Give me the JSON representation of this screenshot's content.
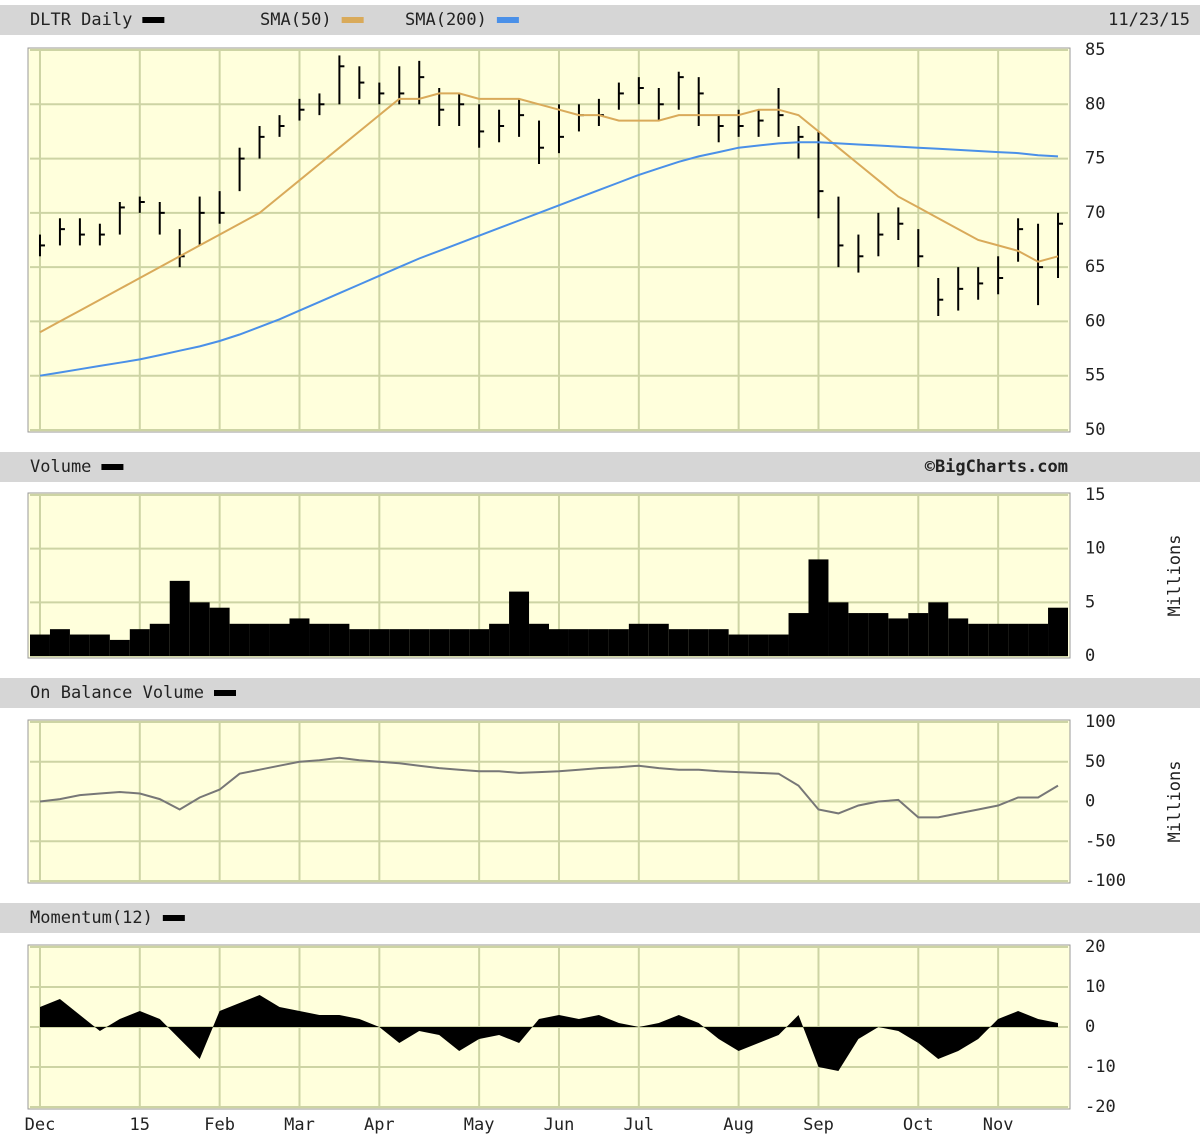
{
  "chart_data": [
    {
      "type": "ohlc",
      "date": "11/23/15",
      "ylim": [
        50,
        85
      ],
      "yticks": [
        50,
        55,
        60,
        65,
        70,
        75,
        80,
        85
      ],
      "grid": true,
      "series": [
        {
          "name": "DLTR Daily",
          "color": "#000000",
          "high": [
            68,
            69.5,
            69.5,
            69,
            71,
            71.5,
            71,
            68.5,
            71.5,
            72,
            76,
            78,
            79,
            80.5,
            81,
            84.5,
            83.5,
            82,
            83.5,
            84,
            81.5,
            81,
            80,
            79.5,
            80.5,
            78.5,
            80,
            80,
            80.5,
            82,
            82.5,
            81.5,
            83,
            82.5,
            79,
            79.5,
            79.5,
            81.5,
            78,
            77.5,
            71.5,
            68,
            70,
            70.5,
            68.5,
            64,
            65,
            65,
            66,
            69.5,
            69,
            70
          ],
          "low": [
            66,
            67,
            67,
            67,
            68,
            70,
            68,
            65,
            67,
            69,
            72,
            75,
            77,
            78.5,
            79,
            80,
            80.5,
            80,
            80,
            80,
            78,
            78,
            76,
            76.5,
            77,
            74.5,
            75.5,
            77.5,
            78,
            79.5,
            80,
            78.5,
            79.5,
            78,
            76.5,
            77,
            77,
            77,
            75,
            69.5,
            65,
            64.5,
            66,
            67.5,
            65,
            60.5,
            61,
            62,
            62.5,
            65.5,
            61.5,
            64
          ],
          "values": [
            67,
            68.5,
            68,
            68,
            70.5,
            71,
            70,
            66,
            70,
            70,
            75,
            77,
            78,
            79.5,
            80,
            83.5,
            82,
            81,
            81,
            82.5,
            79.5,
            80,
            77.5,
            78,
            79,
            76,
            77,
            79,
            79,
            81,
            81.5,
            80,
            82.5,
            81,
            78,
            78,
            78.5,
            79,
            77,
            72,
            67,
            66,
            68,
            69,
            66,
            62,
            63,
            63.5,
            64,
            68.5,
            65,
            69
          ]
        },
        {
          "name": "SMA(50)",
          "color": "#d9aa5a",
          "values": [
            59,
            60,
            61,
            62,
            63,
            64,
            65,
            66,
            67,
            68,
            69,
            70,
            71.5,
            73,
            74.5,
            76,
            77.5,
            79,
            80.5,
            80.5,
            81,
            81,
            80.5,
            80.5,
            80.5,
            80,
            79.5,
            79,
            79,
            78.5,
            78.5,
            78.5,
            79,
            79,
            79,
            79,
            79.5,
            79.5,
            79,
            77.5,
            76,
            74.5,
            73,
            71.5,
            70.5,
            69.5,
            68.5,
            67.5,
            67,
            66.5,
            65.5,
            66
          ]
        },
        {
          "name": "SMA(200)",
          "color": "#4a90e8",
          "values": [
            55,
            55.3,
            55.6,
            55.9,
            56.2,
            56.5,
            56.9,
            57.3,
            57.7,
            58.2,
            58.8,
            59.5,
            60.2,
            61,
            61.8,
            62.6,
            63.4,
            64.2,
            65,
            65.8,
            66.5,
            67.2,
            67.9,
            68.6,
            69.3,
            70,
            70.7,
            71.4,
            72.1,
            72.8,
            73.5,
            74.1,
            74.7,
            75.2,
            75.6,
            76,
            76.2,
            76.4,
            76.5,
            76.5,
            76.4,
            76.3,
            76.2,
            76.1,
            76,
            75.9,
            75.8,
            75.7,
            75.6,
            75.5,
            75.3,
            75.2
          ]
        }
      ]
    },
    {
      "type": "bar",
      "title": "Volume",
      "source": "©BigCharts.com",
      "y_label": "Millions",
      "color": "#000000",
      "ylim": [
        0,
        15
      ],
      "yticks": [
        0,
        5,
        10,
        15
      ],
      "grid": true,
      "values": [
        2,
        2.5,
        2,
        2,
        1.5,
        2.5,
        3,
        7,
        5,
        4.5,
        3,
        3,
        3,
        3.5,
        3,
        3,
        2.5,
        2.5,
        2.5,
        2.5,
        2.5,
        2.5,
        2.5,
        3,
        6,
        3,
        2.5,
        2.5,
        2.5,
        2.5,
        3,
        3,
        2.5,
        2.5,
        2.5,
        2,
        2,
        2,
        4,
        9,
        5,
        4,
        4,
        3.5,
        4,
        5,
        3.5,
        3,
        3,
        3,
        3,
        4.5
      ]
    },
    {
      "type": "line",
      "title": "On Balance Volume",
      "y_label": "Millions",
      "color": "#777777",
      "ylim": [
        -100,
        100
      ],
      "yticks": [
        -100,
        -50,
        0,
        50,
        100
      ],
      "grid": true,
      "values": [
        0,
        3,
        8,
        10,
        12,
        10,
        3,
        -10,
        5,
        15,
        35,
        40,
        45,
        50,
        52,
        55,
        52,
        50,
        48,
        45,
        42,
        40,
        38,
        38,
        36,
        37,
        38,
        40,
        42,
        43,
        45,
        42,
        40,
        40,
        38,
        37,
        36,
        35,
        20,
        -10,
        -15,
        -5,
        0,
        2,
        -20,
        -20,
        -15,
        -10,
        -5,
        5,
        5,
        20
      ]
    },
    {
      "type": "area",
      "title": "Momentum(12)",
      "color": "#000000",
      "ylim": [
        -20,
        20
      ],
      "yticks": [
        -20,
        -10,
        0,
        10,
        20
      ],
      "grid": true,
      "values": [
        5,
        7,
        3,
        -1,
        2,
        4,
        2,
        -3,
        -8,
        4,
        6,
        8,
        5,
        4,
        3,
        3,
        2,
        0,
        -4,
        -1,
        -2,
        -6,
        -3,
        -2,
        -4,
        2,
        3,
        2,
        3,
        1,
        0,
        1,
        3,
        1,
        -3,
        -6,
        -4,
        -2,
        3,
        -10,
        -11,
        -3,
        0,
        -1,
        -4,
        -8,
        -6,
        -3,
        2,
        4,
        2,
        1
      ],
      "xticks": [
        {
          "value": 0,
          "label": "Dec"
        },
        {
          "value": 5,
          "label": "15"
        },
        {
          "value": 9,
          "label": "Feb"
        },
        {
          "value": 13,
          "label": "Mar"
        },
        {
          "value": 17,
          "label": "Apr"
        },
        {
          "value": 22,
          "label": "May"
        },
        {
          "value": 26,
          "label": "Jun"
        },
        {
          "value": 30,
          "label": "Jul"
        },
        {
          "value": 35,
          "label": "Aug"
        },
        {
          "value": 39,
          "label": "Sep"
        },
        {
          "value": 44,
          "label": "Oct"
        },
        {
          "value": 48,
          "label": "Nov"
        }
      ]
    }
  ]
}
